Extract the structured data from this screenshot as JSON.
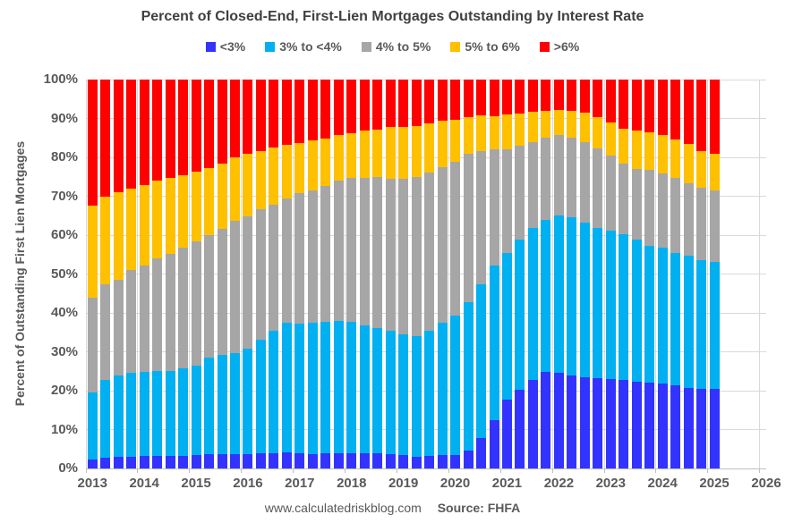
{
  "page": {
    "title": "Percent of Closed-End, First-Lien Mortgages Outstanding by Interest Rate",
    "footer": {
      "site": "www.calculatedriskblog.com",
      "source": "Source: FHFA"
    }
  },
  "chart_data": {
    "type": "bar",
    "stacked": true,
    "title": "Percent of Closed-End, First-Lien Mortgages Outstanding by Interest Rate",
    "xlabel": "",
    "ylabel": "Percent of Outstanding First Lien Mortgages",
    "ylim": [
      0,
      100
    ],
    "grid": true,
    "legend_position": "top",
    "y_tick_labels": [
      "0%",
      "10%",
      "20%",
      "30%",
      "40%",
      "50%",
      "60%",
      "70%",
      "80%",
      "90%",
      "100%"
    ],
    "x_year_labels": [
      "2013",
      "2014",
      "2015",
      "2016",
      "2017",
      "2018",
      "2019",
      "2020",
      "2021",
      "2022",
      "2023",
      "2024",
      "2025",
      "2026"
    ],
    "categories": [
      "2013 Q1",
      "2013 Q2",
      "2013 Q3",
      "2013 Q4",
      "2014 Q1",
      "2014 Q2",
      "2014 Q3",
      "2014 Q4",
      "2015 Q1",
      "2015 Q2",
      "2015 Q3",
      "2015 Q4",
      "2016 Q1",
      "2016 Q2",
      "2016 Q3",
      "2016 Q4",
      "2017 Q1",
      "2017 Q2",
      "2017 Q3",
      "2017 Q4",
      "2018 Q1",
      "2018 Q2",
      "2018 Q3",
      "2018 Q4",
      "2019 Q1",
      "2019 Q2",
      "2019 Q3",
      "2019 Q4",
      "2020 Q1",
      "2020 Q2",
      "2020 Q3",
      "2020 Q4",
      "2021 Q1",
      "2021 Q2",
      "2021 Q3",
      "2021 Q4",
      "2022 Q1",
      "2022 Q2",
      "2022 Q3",
      "2022 Q4",
      "2023 Q1",
      "2023 Q2",
      "2023 Q3",
      "2023 Q4",
      "2024 Q1",
      "2024 Q2",
      "2024 Q3",
      "2024 Q4",
      "2025 Q1"
    ],
    "series": [
      {
        "name": "<3%",
        "color": "#3333FF",
        "values": [
          2.4,
          2.8,
          3.0,
          3.1,
          3.2,
          3.2,
          3.2,
          3.2,
          3.4,
          3.6,
          3.6,
          3.6,
          3.7,
          3.8,
          4.0,
          4.1,
          3.8,
          3.7,
          3.8,
          3.9,
          3.9,
          3.9,
          3.8,
          3.7,
          3.4,
          3.0,
          3.3,
          3.4,
          3.5,
          4.6,
          7.8,
          12.5,
          17.6,
          20.2,
          22.7,
          24.8,
          24.6,
          24.0,
          23.5,
          23.2,
          23.0,
          22.7,
          22.3,
          22.1,
          21.8,
          21.3,
          20.8,
          20.4,
          20.4
        ]
      },
      {
        "name": "3% to <4%",
        "color": "#00B0F0",
        "values": [
          17.2,
          19.9,
          20.8,
          21.5,
          21.6,
          21.8,
          21.9,
          22.5,
          23.1,
          25.0,
          25.6,
          26.1,
          27.0,
          29.2,
          31.5,
          33.3,
          33.5,
          33.7,
          33.8,
          34.1,
          33.7,
          32.9,
          32.3,
          31.6,
          31.0,
          31.0,
          32.1,
          34.0,
          35.8,
          38.2,
          39.6,
          39.6,
          37.9,
          38.6,
          39.1,
          39.1,
          40.5,
          40.5,
          39.7,
          38.7,
          38.2,
          37.6,
          36.6,
          35.1,
          35.0,
          34.1,
          33.8,
          33.2,
          32.6
        ]
      },
      {
        "name": "4% to 5%",
        "color": "#A6A6A6",
        "values": [
          24.3,
          24.6,
          24.7,
          26.4,
          27.4,
          29.0,
          30.1,
          31.1,
          31.9,
          31.5,
          32.4,
          33.9,
          34.2,
          33.6,
          32.4,
          32.0,
          33.4,
          34.2,
          35.0,
          36.1,
          37.0,
          38.0,
          38.8,
          39.2,
          40.0,
          40.9,
          40.8,
          40.1,
          39.5,
          38.2,
          34.1,
          29.9,
          26.5,
          24.1,
          22.2,
          21.1,
          20.6,
          20.6,
          20.6,
          20.4,
          19.3,
          18.2,
          18.2,
          19.5,
          19.1,
          19.2,
          18.7,
          18.5,
          18.4
        ]
      },
      {
        "name": "5% to 6%",
        "color": "#FFC000",
        "values": [
          23.7,
          22.6,
          22.5,
          21.0,
          20.7,
          20.1,
          19.6,
          18.7,
          18.0,
          17.2,
          16.9,
          16.4,
          16.1,
          15.1,
          14.7,
          13.9,
          12.9,
          12.7,
          12.3,
          11.6,
          11.6,
          12.1,
          12.3,
          13.4,
          13.5,
          13.2,
          12.6,
          11.9,
          10.9,
          9.3,
          9.4,
          8.6,
          9.0,
          8.4,
          7.8,
          6.9,
          6.5,
          6.8,
          7.6,
          8.0,
          8.4,
          8.9,
          9.9,
          9.8,
          9.8,
          10.0,
          10.1,
          9.6,
          9.6
        ]
      },
      {
        "name": ">6%",
        "color": "#FF0000",
        "values": [
          32.4,
          30.1,
          29.0,
          28.0,
          27.1,
          25.9,
          25.2,
          24.5,
          23.6,
          22.7,
          21.5,
          20.0,
          19.0,
          18.3,
          17.4,
          16.7,
          16.4,
          15.7,
          15.1,
          14.3,
          13.8,
          13.1,
          12.8,
          12.1,
          12.1,
          11.9,
          11.2,
          10.6,
          10.3,
          9.7,
          9.1,
          9.4,
          9.0,
          8.7,
          8.2,
          8.1,
          7.8,
          8.1,
          8.6,
          9.7,
          11.1,
          12.6,
          13.0,
          13.5,
          14.3,
          15.4,
          16.6,
          18.3,
          19.0
        ]
      }
    ],
    "colors": {
      "gridline": "#D9D9D9",
      "axis": "#BFBFBF",
      "title_text": "#404040",
      "axis_text": "#595959"
    }
  }
}
